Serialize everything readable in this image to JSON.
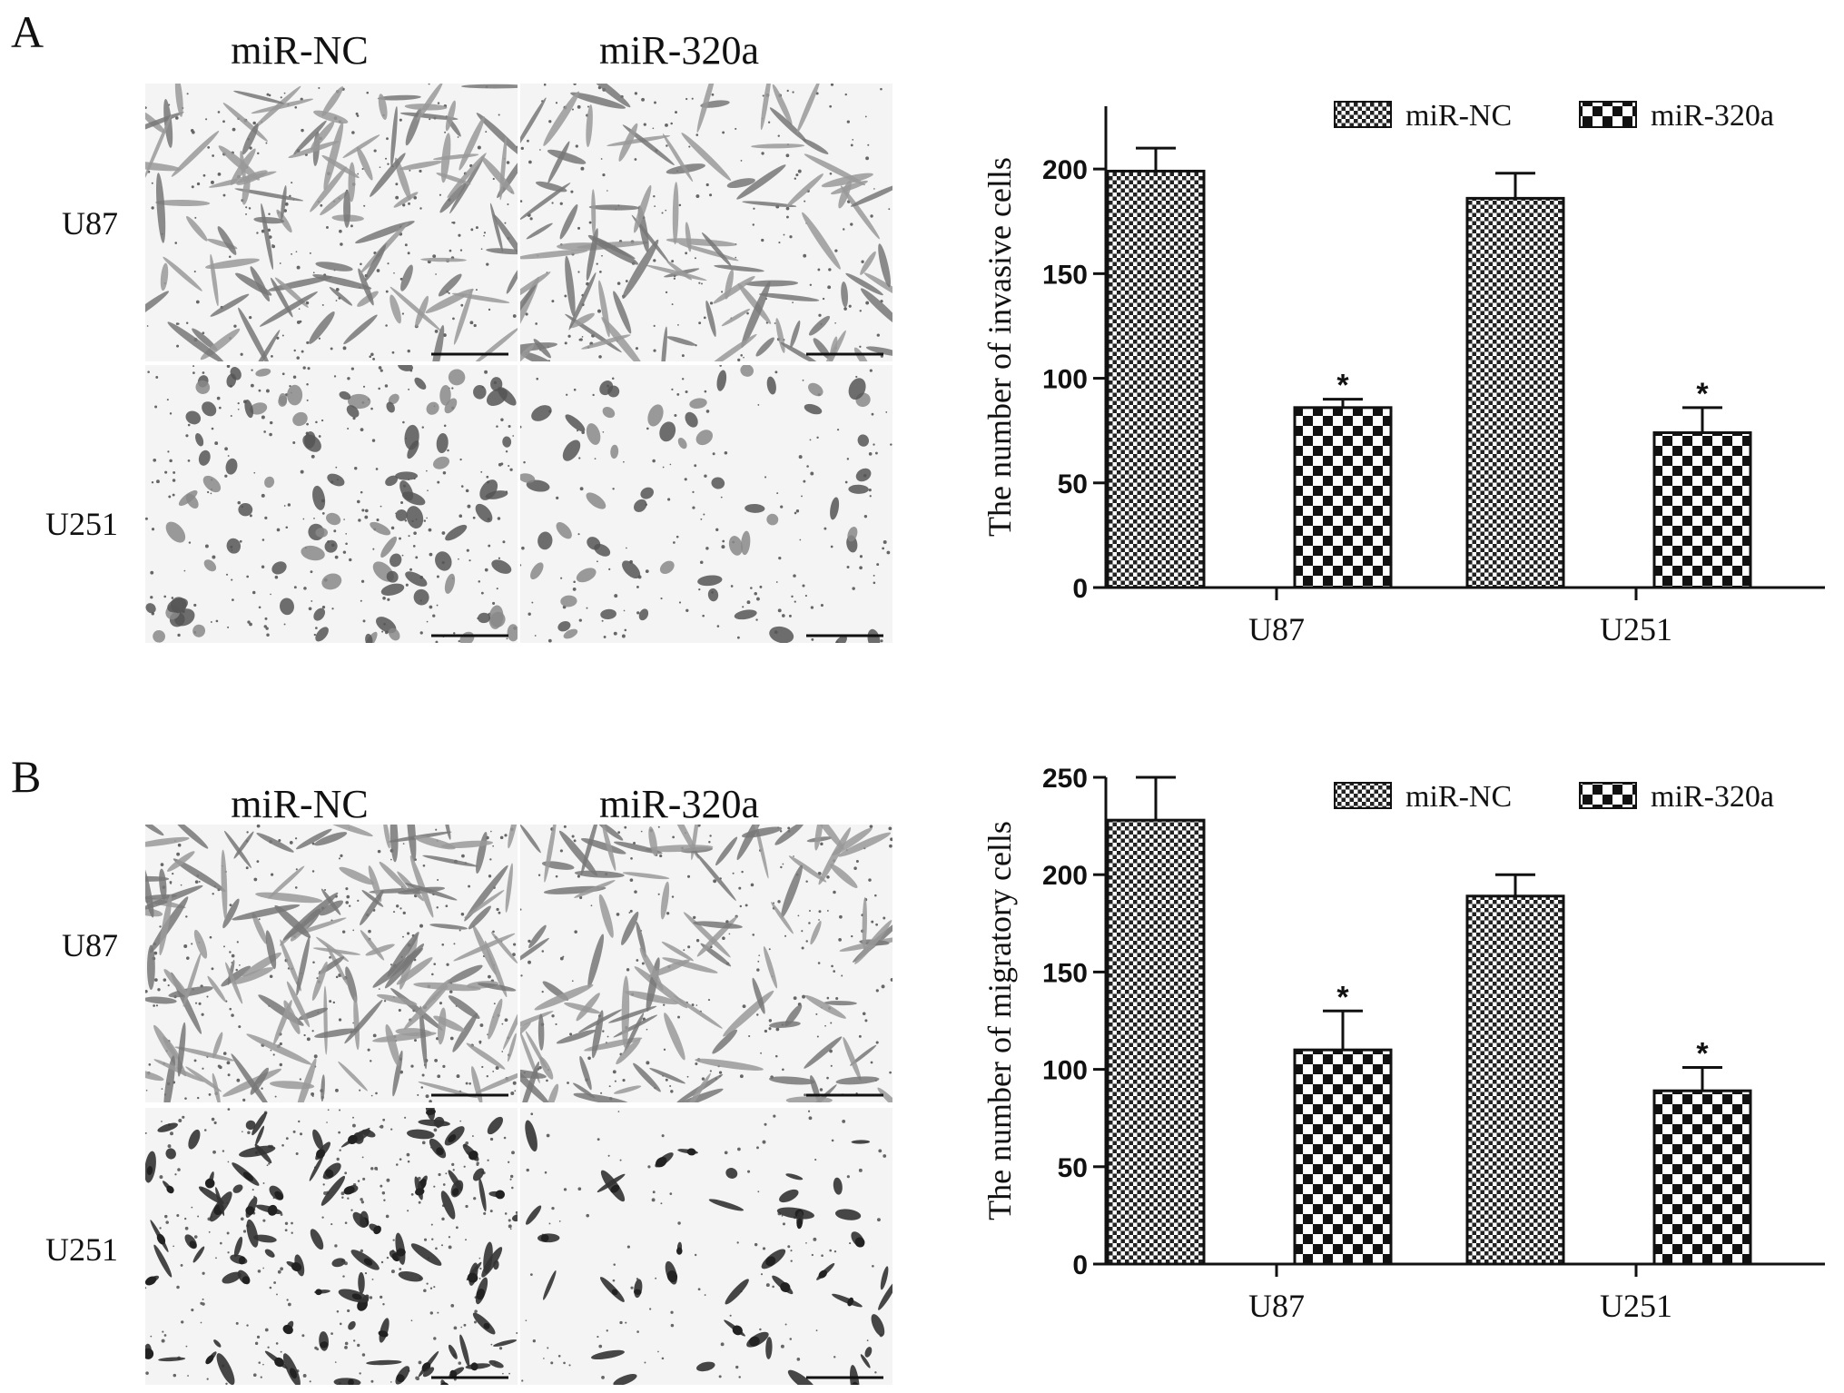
{
  "panels": [
    {
      "letter": "A",
      "micrograph": {
        "columns": [
          "miR-NC",
          "miR-320a"
        ],
        "rows": [
          "U87",
          "U251"
        ]
      }
    },
    {
      "letter": "B",
      "micrograph": {
        "columns": [
          "miR-NC",
          "miR-320a"
        ],
        "rows": [
          "U87",
          "U251"
        ]
      }
    }
  ],
  "chart_data": [
    {
      "type": "bar",
      "categories": [
        "U87",
        "U251"
      ],
      "series": [
        {
          "name": "miR-NC",
          "values": [
            199,
            186
          ],
          "errors": [
            11,
            12
          ],
          "pattern": "fine-check"
        },
        {
          "name": "miR-320a",
          "values": [
            86,
            74
          ],
          "errors": [
            4,
            12
          ],
          "pattern": "coarse-check"
        }
      ],
      "ylabel": "The number of  invasive cells",
      "xlabel": "",
      "ylim": [
        0,
        230
      ],
      "yticks": [
        0,
        50,
        100,
        150,
        200
      ],
      "significance": [
        {
          "series": "miR-320a",
          "category": "U87",
          "mark": "*"
        },
        {
          "series": "miR-320a",
          "category": "U251",
          "mark": "*"
        }
      ],
      "legend": "top-right",
      "grid": false,
      "colors": {
        "bar_fill": "#ffffff",
        "bar_ink": "#111111",
        "axis": "#111111"
      }
    },
    {
      "type": "bar",
      "categories": [
        "U87",
        "U251"
      ],
      "series": [
        {
          "name": "miR-NC",
          "values": [
            228,
            189
          ],
          "errors": [
            22,
            11
          ],
          "pattern": "fine-check"
        },
        {
          "name": "miR-320a",
          "values": [
            110,
            89
          ],
          "errors": [
            20,
            12
          ],
          "pattern": "coarse-check"
        }
      ],
      "ylabel": "The number of  migratory cells",
      "xlabel": "",
      "ylim": [
        0,
        250
      ],
      "yticks": [
        0,
        50,
        100,
        150,
        200,
        250
      ],
      "significance": [
        {
          "series": "miR-320a",
          "category": "U87",
          "mark": "*"
        },
        {
          "series": "miR-320a",
          "category": "U251",
          "mark": "*"
        }
      ],
      "legend": "top-right",
      "grid": false,
      "colors": {
        "bar_fill": "#ffffff",
        "bar_ink": "#111111",
        "axis": "#111111"
      }
    }
  ]
}
